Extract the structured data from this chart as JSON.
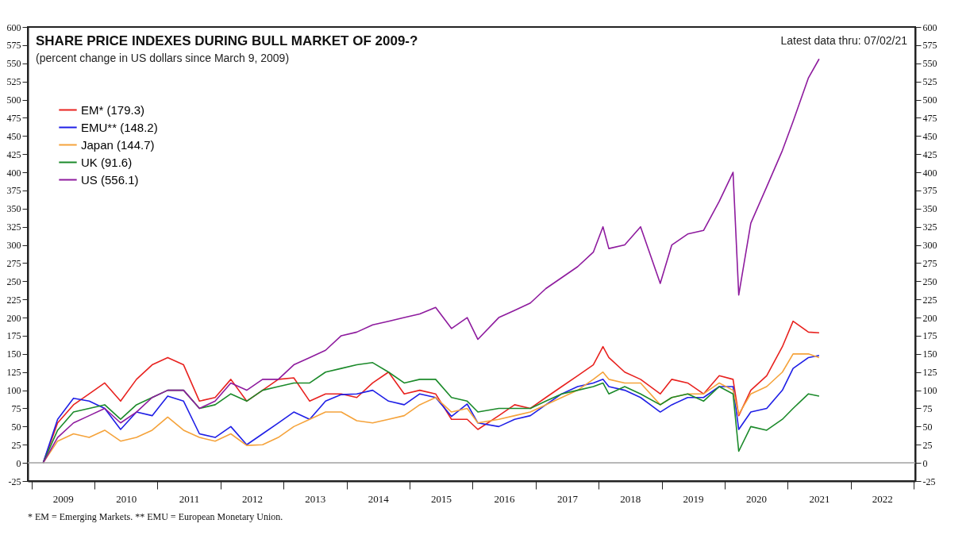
{
  "chart_data": {
    "type": "line",
    "title": "SHARE PRICE INDEXES DURING BULL MARKET OF 2009-?",
    "subtitle": "(percent change in US dollars since March 9, 2009)",
    "annotations": [
      "Latest data thru: 07/02/21",
      "* EM = Emerging Markets.  ** EMU = European Monetary Union."
    ],
    "x": [
      "2009-03-09",
      "2009-06",
      "2009-09",
      "2009-12",
      "2010-03",
      "2010-06",
      "2010-09",
      "2010-12",
      "2011-03",
      "2011-06",
      "2011-09",
      "2011-12",
      "2012-03",
      "2012-06",
      "2012-09",
      "2012-12",
      "2013-03",
      "2013-06",
      "2013-09",
      "2013-12",
      "2014-03",
      "2014-06",
      "2014-09",
      "2014-12",
      "2015-03",
      "2015-06",
      "2015-09",
      "2015-12",
      "2016-02",
      "2016-06",
      "2016-09",
      "2016-12",
      "2017-03",
      "2017-06",
      "2017-09",
      "2017-12",
      "2018-01-26",
      "2018-03",
      "2018-06",
      "2018-09",
      "2018-12-24",
      "2019-03",
      "2019-06",
      "2019-09",
      "2019-12",
      "2020-02-19",
      "2020-03-23",
      "2020-06",
      "2020-09",
      "2020-12",
      "2021-02",
      "2021-05",
      "2021-07-02"
    ],
    "series": [
      {
        "name": "EM* (179.3)",
        "color": "#e8221f",
        "values": [
          0,
          55,
          80,
          95,
          110,
          85,
          115,
          135,
          145,
          135,
          85,
          90,
          115,
          85,
          100,
          115,
          117,
          85,
          95,
          95,
          90,
          110,
          125,
          95,
          100,
          95,
          60,
          60,
          46,
          65,
          80,
          75,
          90,
          105,
          120,
          135,
          160,
          145,
          125,
          115,
          95,
          115,
          110,
          95,
          120,
          115,
          65,
          100,
          120,
          160,
          195,
          180,
          179
        ]
      },
      {
        "name": "EMU** (148.2)",
        "color": "#1f1fe6",
        "values": [
          0,
          60,
          89,
          85,
          75,
          46,
          70,
          65,
          92,
          85,
          40,
          35,
          50,
          25,
          40,
          55,
          70,
          60,
          85,
          94,
          95,
          100,
          85,
          80,
          95,
          90,
          64,
          81,
          55,
          50,
          60,
          65,
          80,
          95,
          105,
          110,
          115,
          105,
          100,
          90,
          70,
          80,
          90,
          90,
          105,
          105,
          46,
          70,
          75,
          100,
          130,
          145,
          148
        ]
      },
      {
        "name": "Japan (144.7)",
        "color": "#f5a33b",
        "values": [
          0,
          30,
          40,
          35,
          45,
          30,
          35,
          45,
          63,
          45,
          35,
          30,
          40,
          24,
          25,
          35,
          50,
          60,
          70,
          70,
          58,
          55,
          60,
          65,
          80,
          90,
          70,
          75,
          55,
          60,
          65,
          70,
          80,
          90,
          100,
          115,
          125,
          115,
          110,
          110,
          80,
          90,
          95,
          95,
          110,
          100,
          67,
          95,
          105,
          125,
          150,
          150,
          145
        ]
      },
      {
        "name": "UK (91.6)",
        "color": "#1b8a2a",
        "values": [
          0,
          45,
          70,
          75,
          80,
          60,
          80,
          90,
          100,
          100,
          75,
          80,
          95,
          85,
          100,
          105,
          110,
          110,
          125,
          130,
          135,
          138,
          125,
          110,
          115,
          115,
          90,
          85,
          70,
          75,
          75,
          75,
          85,
          95,
          100,
          105,
          110,
          95,
          105,
          95,
          80,
          90,
          95,
          85,
          105,
          95,
          16,
          50,
          45,
          60,
          75,
          95,
          92
        ]
      },
      {
        "name": "US (556.1)",
        "color": "#8e1b9e",
        "values": [
          0,
          35,
          55,
          65,
          75,
          55,
          70,
          90,
          100,
          100,
          75,
          85,
          110,
          100,
          115,
          115,
          135,
          145,
          155,
          175,
          180,
          190,
          195,
          200,
          205,
          214,
          185,
          200,
          170,
          200,
          210,
          220,
          240,
          255,
          270,
          290,
          325,
          295,
          300,
          325,
          247,
          300,
          315,
          320,
          360,
          400,
          231,
          330,
          380,
          430,
          470,
          530,
          556
        ]
      }
    ],
    "xlim": [
      "2008-12-10",
      "2023-01-10"
    ],
    "xticks": [
      {
        "value": "2009-01-01",
        "label": null
      },
      {
        "value": "2009-07-02",
        "label": "2009"
      },
      {
        "value": "2010-01-01",
        "label": null
      },
      {
        "value": "2010-07-02",
        "label": "2010"
      },
      {
        "value": "2011-01-01",
        "label": null
      },
      {
        "value": "2011-07-02",
        "label": "2011"
      },
      {
        "value": "2012-01-01",
        "label": null
      },
      {
        "value": "2012-07-02",
        "label": "2012"
      },
      {
        "value": "2013-01-01",
        "label": null
      },
      {
        "value": "2013-07-02",
        "label": "2013"
      },
      {
        "value": "2014-01-01",
        "label": null
      },
      {
        "value": "2014-07-02",
        "label": "2014"
      },
      {
        "value": "2015-01-01",
        "label": null
      },
      {
        "value": "2015-07-02",
        "label": "2015"
      },
      {
        "value": "2016-01-01",
        "label": null
      },
      {
        "value": "2016-07-02",
        "label": "2016"
      },
      {
        "value": "2017-01-01",
        "label": null
      },
      {
        "value": "2017-07-02",
        "label": "2017"
      },
      {
        "value": "2018-01-01",
        "label": null
      },
      {
        "value": "2018-07-02",
        "label": "2018"
      },
      {
        "value": "2019-01-01",
        "label": null
      },
      {
        "value": "2019-07-02",
        "label": "2019"
      },
      {
        "value": "2020-01-01",
        "label": null
      },
      {
        "value": "2020-07-02",
        "label": "2020"
      },
      {
        "value": "2021-01-01",
        "label": null
      },
      {
        "value": "2021-07-02",
        "label": "2021"
      },
      {
        "value": "2022-01-01",
        "label": null
      },
      {
        "value": "2022-07-02",
        "label": "2022"
      },
      {
        "value": "2023-01-01",
        "label": null
      }
    ],
    "ylim": [
      -25,
      600
    ],
    "yticks": [
      -25,
      0,
      25,
      50,
      75,
      100,
      125,
      150,
      175,
      200,
      225,
      250,
      275,
      300,
      325,
      350,
      375,
      400,
      425,
      450,
      475,
      500,
      525,
      550,
      575,
      600
    ],
    "y2lim": [
      -25,
      600
    ],
    "y2ticks": [
      -25,
      0,
      25,
      50,
      75,
      100,
      125,
      150,
      175,
      200,
      225,
      250,
      275,
      300,
      325,
      350,
      375,
      400,
      425,
      450,
      475,
      500,
      525,
      550,
      575,
      600
    ],
    "ref_lines": [
      {
        "axis": "y",
        "value": 0,
        "color": "#a0a0a0"
      }
    ],
    "legend": "top left",
    "grid": false,
    "marker": "none",
    "line_style": "solid"
  }
}
